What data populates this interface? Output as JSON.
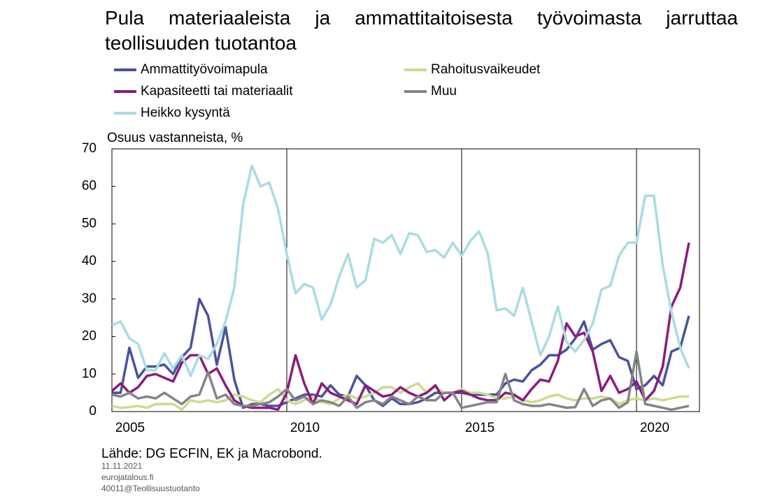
{
  "chart_data": {
    "type": "line",
    "title": "Pula materiaaleista ja ammattitaitoisesta työvoimasta jarruttaa teollisuuden tuotantoa",
    "y_label": "Osuus vastanneista, %",
    "source": "Lähde: DG ECFIN, EK ja Macrobond.",
    "footer": [
      "11.11.2021",
      "eurojatalous.fi",
      "40011@Teollisuustuotanto"
    ],
    "x": [
      2005,
      2005.25,
      2005.5,
      2005.75,
      2006,
      2006.25,
      2006.5,
      2006.75,
      2007,
      2007.25,
      2007.5,
      2007.75,
      2008,
      2008.25,
      2008.5,
      2008.75,
      2009,
      2009.25,
      2009.5,
      2009.75,
      2010,
      2010.25,
      2010.5,
      2010.75,
      2011,
      2011.25,
      2011.5,
      2011.75,
      2012,
      2012.25,
      2012.5,
      2012.75,
      2013,
      2013.25,
      2013.5,
      2013.75,
      2014,
      2014.25,
      2014.5,
      2014.75,
      2015,
      2015.25,
      2015.5,
      2015.75,
      2016,
      2016.25,
      2016.5,
      2016.75,
      2017,
      2017.25,
      2017.5,
      2017.75,
      2018,
      2018.25,
      2018.5,
      2018.75,
      2019,
      2019.25,
      2019.5,
      2019.75,
      2020,
      2020.25,
      2020.5,
      2020.75,
      2021,
      2021.25,
      2021.5
    ],
    "xlim": [
      2005,
      2021.8
    ],
    "xticks": [
      2005,
      2010,
      2015,
      2020
    ],
    "ylim": [
      0,
      70
    ],
    "yticks": [
      0,
      10,
      20,
      30,
      40,
      50,
      60,
      70
    ],
    "grid": "x",
    "series": [
      {
        "name": "Ammattityövoimapula",
        "color": "#4a529f",
        "values": [
          5,
          5,
          17,
          9,
          12,
          12,
          12.5,
          10,
          14.5,
          17,
          30,
          25.5,
          12.5,
          22.5,
          8.5,
          1,
          2,
          2,
          1.5,
          1.5,
          2.5,
          3.5,
          4.5,
          4.5,
          4,
          7,
          4.5,
          4,
          9.5,
          7,
          3,
          1.5,
          3.5,
          2,
          2,
          2.5,
          3.5,
          5,
          5,
          5,
          5,
          4.5,
          4.5,
          4.5,
          4.5,
          7.5,
          8.5,
          8,
          11,
          12.5,
          15,
          15,
          16.5,
          19.5,
          24,
          16.5,
          18,
          19,
          14.5,
          13.5,
          6,
          7,
          9.5,
          7,
          16,
          17,
          25.5
        ]
      },
      {
        "name": "Rahoitusvaikeudet",
        "color": "#c9dc8e",
        "values": [
          1.5,
          1,
          1.2,
          1.5,
          1,
          2,
          2,
          2,
          0.5,
          3,
          2.5,
          3,
          2.5,
          3,
          4.5,
          4,
          3,
          2.5,
          4.5,
          6,
          3,
          2,
          3,
          4,
          2.5,
          2,
          3.5,
          4.5,
          3.5,
          4,
          5,
          6.5,
          6.5,
          5,
          6.5,
          7.5,
          5,
          6.5,
          5,
          5,
          6,
          5,
          5,
          4.5,
          3.5,
          3.5,
          4,
          3,
          2.5,
          3,
          4,
          4.5,
          3.5,
          3,
          3.5,
          3.5,
          4,
          3.5,
          2,
          3,
          3.5,
          3,
          3.5,
          3,
          3.5,
          4,
          4
        ]
      },
      {
        "name": "Kapasiteetti tai materiaalit",
        "color": "#8c1b7f",
        "values": [
          5.5,
          7.5,
          5,
          6.5,
          9.5,
          10,
          9,
          8,
          13,
          15,
          15,
          10,
          11.5,
          7,
          3,
          1.5,
          1,
          1,
          1,
          0.5,
          5,
          15,
          7.5,
          2,
          7.5,
          5,
          4,
          3,
          2,
          7,
          5.5,
          4,
          4.5,
          6.5,
          5,
          4,
          5,
          7,
          3,
          5,
          5.5,
          4.5,
          3.5,
          3,
          3,
          5,
          4.5,
          3,
          6,
          8.5,
          8,
          13.5,
          23.5,
          20,
          21,
          16,
          5.5,
          9.5,
          5,
          6,
          8,
          3,
          5.5,
          12,
          28,
          33,
          45
        ]
      },
      {
        "name": "Muu",
        "color": "#858585",
        "values": [
          4.5,
          4,
          5,
          3.5,
          4,
          3.5,
          5,
          3.5,
          2,
          4,
          4.5,
          10.5,
          3.5,
          4.5,
          2,
          1.5,
          1.5,
          2,
          2.5,
          4,
          6,
          3,
          4,
          2,
          3,
          2.5,
          1.5,
          4,
          1,
          2.5,
          3,
          2,
          4,
          3,
          2,
          4,
          3,
          3,
          5,
          5,
          1,
          1.5,
          2,
          2.5,
          2.5,
          10,
          3,
          2,
          1.5,
          1.5,
          2,
          1.5,
          1,
          1.2,
          6,
          1.5,
          3,
          3.5,
          1,
          2.5,
          16,
          2,
          1.5,
          1,
          0.5,
          1,
          1.5
        ]
      },
      {
        "name": "Heikko kysyntä",
        "color": "#a9dce1",
        "values": [
          23,
          24,
          19.5,
          18,
          11,
          11,
          15.5,
          11.5,
          15,
          9.5,
          15,
          14,
          18,
          24,
          33,
          55,
          65.5,
          60,
          61,
          54,
          42,
          31.5,
          34,
          33,
          24.5,
          28.5,
          36,
          42,
          33,
          35,
          46,
          45,
          47,
          42,
          47.5,
          47,
          42.5,
          43,
          41,
          45,
          41.5,
          45.5,
          48,
          42,
          27,
          27.5,
          25.5,
          33,
          24,
          15,
          20,
          28,
          18.5,
          16,
          19,
          23.5,
          32.5,
          33.5,
          41.5,
          45,
          45,
          57.5,
          57.5,
          39,
          26.5,
          17,
          11.5
        ]
      }
    ]
  }
}
